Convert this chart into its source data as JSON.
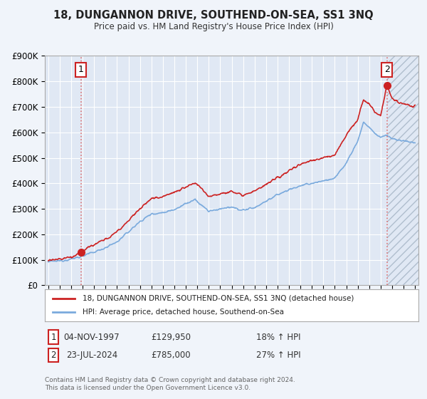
{
  "title": "18, DUNGANNON DRIVE, SOUTHEND-ON-SEA, SS1 3NQ",
  "subtitle": "Price paid vs. HM Land Registry's House Price Index (HPI)",
  "legend_line1": "18, DUNGANNON DRIVE, SOUTHEND-ON-SEA, SS1 3NQ (detached house)",
  "legend_line2": "HPI: Average price, detached house, Southend-on-Sea",
  "transaction1_date": "04-NOV-1997",
  "transaction1_price": "£129,950",
  "transaction1_hpi": "18% ↑ HPI",
  "transaction2_date": "23-JUL-2024",
  "transaction2_price": "£785,000",
  "transaction2_hpi": "27% ↑ HPI",
  "footnote": "Contains HM Land Registry data © Crown copyright and database right 2024.\nThis data is licensed under the Open Government Licence v3.0.",
  "hpi_color": "#7aaadd",
  "price_color": "#cc2222",
  "vline_color": "#dd6666",
  "background_color": "#f0f4fa",
  "plot_bg_color": "#e0e8f4",
  "grid_color": "#ffffff",
  "ylim": [
    0,
    900000
  ],
  "yticks": [
    0,
    100000,
    200000,
    300000,
    400000,
    500000,
    600000,
    700000,
    800000,
    900000
  ],
  "xlim_start": 1994.7,
  "xlim_end": 2027.3,
  "transaction1_x": 1997.84,
  "transaction1_y": 129950,
  "transaction2_x": 2024.55,
  "transaction2_y": 785000
}
